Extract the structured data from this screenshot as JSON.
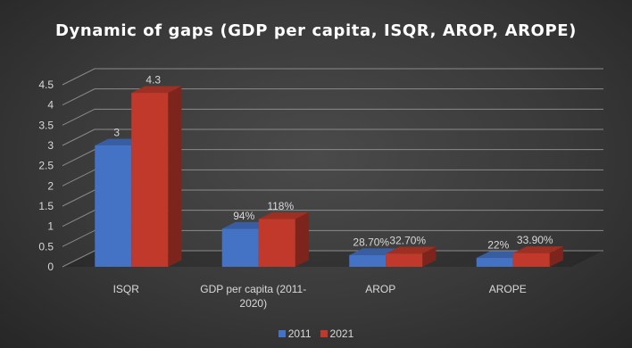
{
  "chart_data": {
    "type": "bar",
    "title": "Dynamic of gaps (GDP per capita, ISQR, AROP, AROPE)",
    "categories": [
      "ISQR",
      "GDP per capita (2011-2020)",
      "AROP",
      "AROPE"
    ],
    "category_lines": [
      [
        "ISQR"
      ],
      [
        "GDP per capita (2011-",
        "2020)"
      ],
      [
        "AROP"
      ],
      [
        "AROPE"
      ]
    ],
    "series": [
      {
        "name": "2011",
        "color": "#4472c4",
        "values": [
          3,
          0.94,
          0.287,
          0.22
        ],
        "labels": [
          "3",
          "94%",
          "28.70%",
          "22%"
        ]
      },
      {
        "name": "2021",
        "color": "#c0392b",
        "values": [
          4.3,
          1.18,
          0.327,
          0.339
        ],
        "labels": [
          "4.3",
          "118%",
          "32.70%",
          "33.90%"
        ]
      }
    ],
    "y_ticks": [
      "0",
      "0.5",
      "1",
      "1.5",
      "2",
      "2.5",
      "3",
      "3.5",
      "4",
      "4.5"
    ],
    "ylim": [
      0,
      4.5
    ],
    "grid": true,
    "legend_position": "bottom",
    "three_d": true
  }
}
